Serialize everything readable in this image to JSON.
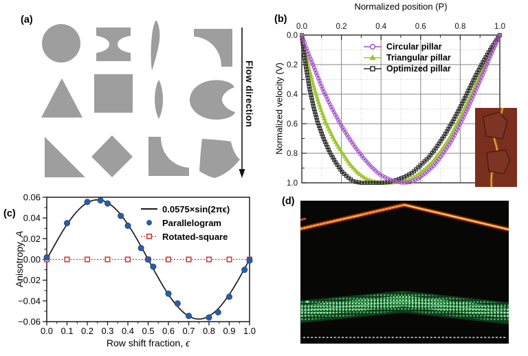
{
  "figure": {
    "background": "#ffffff",
    "panels": {
      "a": {
        "label": "(a)",
        "flow_label": "Flow direction",
        "shape_color": "#9e9e9e",
        "shapes": [
          "circle",
          "i-beam",
          "comma-sliver",
          "concave-corner-square",
          "triangle",
          "square",
          "lens",
          "notched-blob",
          "right-triangle",
          "diamond",
          "concave-l",
          "curved-quadrilateral"
        ]
      },
      "b": {
        "label": "(b)",
        "inset": {
          "type": "micrograph",
          "background": "#7a2f1e",
          "outline_color": "#4f1d0d",
          "streak_color": "#e8b23c",
          "content": "two-pillar-outlines-with-particle-streak"
        }
      },
      "c": {
        "label": "(c)"
      },
      "d": {
        "label": "(d)",
        "type": "fluorescence-micrograph",
        "features": [
          "red-particle-stream-peak",
          "green-particle-band",
          "dashed-baseline"
        ],
        "colors": {
          "background": "#070705",
          "red_stream": "#d85018",
          "red_stream_highlight": "#ffcf5e",
          "green_band": "#57d87c",
          "baseline": "#d8dcee"
        }
      }
    }
  },
  "chart_data": [
    {
      "type": "line",
      "panel": "b",
      "xlabel": "Normalized position (P)",
      "ylabel": "Normalized velocity (V)",
      "x_axis_position": "top",
      "y_inverted": true,
      "xlim": [
        0,
        1
      ],
      "ylim": [
        0,
        1
      ],
      "grid": true,
      "legend_position": "upper-left-inside",
      "x_ticks": [
        "0.0",
        "0.2",
        "0.4",
        "0.6",
        "0.8",
        "1.0"
      ],
      "y_ticks": [
        "0.0",
        "0.2",
        "0.4",
        "0.6",
        "0.8",
        "1.0"
      ],
      "series": [
        {
          "name": "Circular pillar",
          "color": "#a24cc8",
          "marker": "circle",
          "points": [
            [
              0,
              0
            ],
            [
              0.02,
              0.08
            ],
            [
              0.05,
              0.18
            ],
            [
              0.08,
              0.28
            ],
            [
              0.11,
              0.38
            ],
            [
              0.15,
              0.49
            ],
            [
              0.19,
              0.59
            ],
            [
              0.23,
              0.68
            ],
            [
              0.27,
              0.76
            ],
            [
              0.31,
              0.83
            ],
            [
              0.35,
              0.89
            ],
            [
              0.39,
              0.94
            ],
            [
              0.43,
              0.97
            ],
            [
              0.47,
              0.99
            ],
            [
              0.51,
              1.0
            ],
            [
              0.55,
              0.995
            ],
            [
              0.59,
              0.97
            ],
            [
              0.63,
              0.93
            ],
            [
              0.67,
              0.88
            ],
            [
              0.71,
              0.81
            ],
            [
              0.75,
              0.73
            ],
            [
              0.79,
              0.63
            ],
            [
              0.83,
              0.52
            ],
            [
              0.87,
              0.4
            ],
            [
              0.91,
              0.28
            ],
            [
              0.95,
              0.15
            ],
            [
              1,
              0
            ]
          ]
        },
        {
          "name": "Triangular pillar",
          "color": "#9ec52e",
          "marker": "triangle",
          "points": [
            [
              0,
              0
            ],
            [
              0.015,
              0.1
            ],
            [
              0.035,
              0.22
            ],
            [
              0.06,
              0.35
            ],
            [
              0.09,
              0.48
            ],
            [
              0.12,
              0.59
            ],
            [
              0.16,
              0.7
            ],
            [
              0.2,
              0.79
            ],
            [
              0.24,
              0.87
            ],
            [
              0.28,
              0.93
            ],
            [
              0.32,
              0.97
            ],
            [
              0.36,
              0.99
            ],
            [
              0.4,
              1.0
            ],
            [
              0.45,
              1.0
            ],
            [
              0.5,
              0.99
            ],
            [
              0.54,
              0.98
            ],
            [
              0.58,
              0.95
            ],
            [
              0.62,
              0.91
            ],
            [
              0.66,
              0.86
            ],
            [
              0.7,
              0.79
            ],
            [
              0.74,
              0.71
            ],
            [
              0.78,
              0.61
            ],
            [
              0.82,
              0.5
            ],
            [
              0.86,
              0.39
            ],
            [
              0.9,
              0.27
            ],
            [
              0.95,
              0.13
            ],
            [
              1,
              0
            ]
          ]
        },
        {
          "name": "Optimized pillar",
          "color": "#2a2a2a",
          "marker": "square",
          "points": [
            [
              0,
              0
            ],
            [
              0.01,
              0.12
            ],
            [
              0.025,
              0.25
            ],
            [
              0.04,
              0.37
            ],
            [
              0.06,
              0.49
            ],
            [
              0.08,
              0.59
            ],
            [
              0.11,
              0.7
            ],
            [
              0.14,
              0.79
            ],
            [
              0.17,
              0.86
            ],
            [
              0.2,
              0.92
            ],
            [
              0.23,
              0.96
            ],
            [
              0.26,
              0.99
            ],
            [
              0.3,
              1.0
            ],
            [
              0.35,
              1.0
            ],
            [
              0.4,
              1.0
            ],
            [
              0.44,
              0.995
            ],
            [
              0.48,
              0.98
            ],
            [
              0.52,
              0.96
            ],
            [
              0.56,
              0.93
            ],
            [
              0.6,
              0.88
            ],
            [
              0.64,
              0.83
            ],
            [
              0.68,
              0.76
            ],
            [
              0.72,
              0.68
            ],
            [
              0.76,
              0.59
            ],
            [
              0.8,
              0.49
            ],
            [
              0.84,
              0.38
            ],
            [
              0.88,
              0.27
            ],
            [
              0.92,
              0.17
            ],
            [
              0.96,
              0.08
            ],
            [
              1,
              0
            ]
          ]
        }
      ]
    },
    {
      "type": "scatter",
      "panel": "c",
      "xlabel_prefix": "Row shift fraction, ",
      "xlabel_var": "ϵ",
      "ylabel_prefix": "Anisotropy, ",
      "ylabel_var": "A",
      "xlim": [
        0,
        1
      ],
      "ylim": [
        -0.06,
        0.06
      ],
      "grid": false,
      "legend_position": "upper-right-inside",
      "x_ticks": [
        "0.0",
        "0.1",
        "0.2",
        "0.3",
        "0.4",
        "0.5",
        "0.6",
        "0.7",
        "0.8",
        "0.9",
        "1.0"
      ],
      "y_ticks": [
        "0.06",
        "0.04",
        "0.02",
        "0.00",
        "−0.02",
        "−0.04",
        "−0.06"
      ],
      "fit": {
        "label": "0.0575×sin(2πϵ)",
        "amplitude": 0.0575,
        "color": "#1a1a1a"
      },
      "series": [
        {
          "name": "Parallelogram",
          "color": "#2b5caa",
          "marker": "filled-circle",
          "points": [
            [
              0,
              0.002
            ],
            [
              0.1,
              0.035
            ],
            [
              0.2,
              0.0555
            ],
            [
              0.265,
              0.057
            ],
            [
              0.3,
              0.054
            ],
            [
              0.365,
              0.042
            ],
            [
              0.4,
              0.0325
            ],
            [
              0.465,
              0.011
            ],
            [
              0.5,
              0.0
            ],
            [
              0.525,
              -0.007
            ],
            [
              0.6,
              -0.033
            ],
            [
              0.645,
              -0.0425
            ],
            [
              0.7,
              -0.0545
            ],
            [
              0.8,
              -0.056
            ],
            [
              0.845,
              -0.051
            ],
            [
              0.9,
              -0.036
            ],
            [
              0.975,
              -0.01
            ],
            [
              1.0,
              -0.001
            ]
          ]
        },
        {
          "name": "Rotated-square",
          "color": "#c8332e",
          "marker": "open-square",
          "line_style": "dotted",
          "points": [
            [
              0,
              0
            ],
            [
              0.1,
              0
            ],
            [
              0.2,
              0
            ],
            [
              0.3,
              0
            ],
            [
              0.4,
              0
            ],
            [
              0.5,
              0
            ],
            [
              0.6,
              0
            ],
            [
              0.7,
              0
            ],
            [
              0.8,
              0
            ],
            [
              0.9,
              0
            ],
            [
              1,
              0
            ]
          ]
        }
      ]
    }
  ]
}
